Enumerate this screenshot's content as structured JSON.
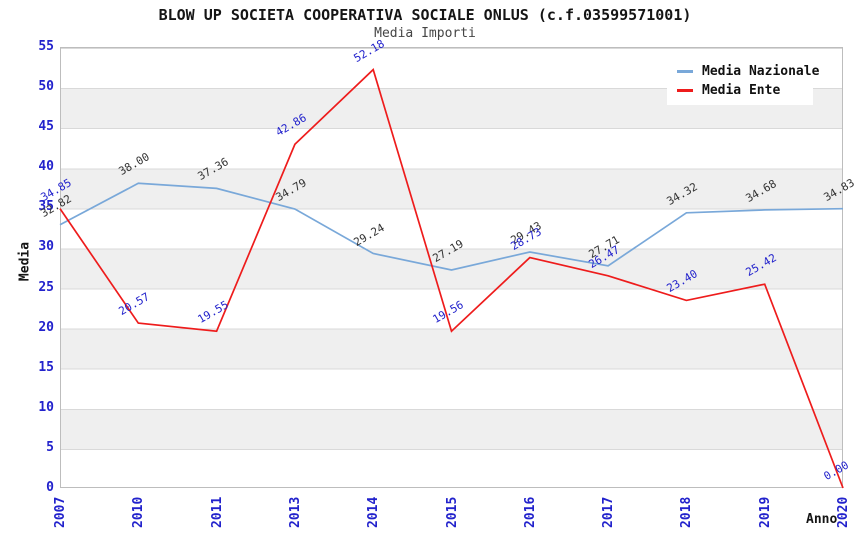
{
  "title": "BLOW UP SOCIETA COOPERATIVA SOCIALE ONLUS (c.f.03599571001)",
  "subtitle": "Media Importi",
  "axes": {
    "x_title": "Anno",
    "y_title": "Media",
    "y_ticks": [
      0,
      5,
      10,
      15,
      20,
      25,
      30,
      35,
      40,
      45,
      50,
      55
    ],
    "tick_color": "#2222cc"
  },
  "legend": {
    "items": [
      {
        "label": "Media Nazionale",
        "color": "#79a8d9"
      },
      {
        "label": "Media Ente",
        "color": "#ee1c1c"
      }
    ]
  },
  "chart_data": {
    "type": "line",
    "title": "BLOW UP SOCIETA COOPERATIVA SOCIALE ONLUS (c.f.03599571001)",
    "subtitle": "Media Importi",
    "xlabel": "Anno",
    "ylabel": "Media",
    "categories": [
      "2007",
      "2010",
      "2011",
      "2013",
      "2014",
      "2015",
      "2016",
      "2017",
      "2018",
      "2019",
      "2020"
    ],
    "series": [
      {
        "name": "Media Nazionale",
        "color": "#79a8d9",
        "label_color": "#333333",
        "values": [
          32.82,
          38.0,
          37.36,
          34.79,
          29.24,
          27.19,
          29.43,
          27.71,
          34.32,
          34.68,
          34.83
        ]
      },
      {
        "name": "Media Ente",
        "color": "#ee1c1c",
        "label_color": "#2222cc",
        "values": [
          34.85,
          20.57,
          19.55,
          42.86,
          52.18,
          19.56,
          28.73,
          26.47,
          23.4,
          25.42,
          0.0
        ]
      }
    ],
    "ylim": [
      0,
      55
    ],
    "ytick_step": 5,
    "legend_position": "top-right",
    "grid": "horizontal-bands-every-5-units",
    "band_colors": [
      "#ffffff",
      "#efefef"
    ],
    "data_labels": "shown, rotated -30deg, 2 decimals"
  }
}
